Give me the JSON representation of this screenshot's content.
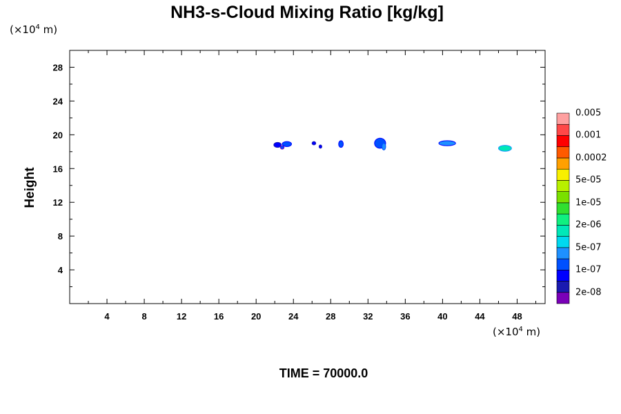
{
  "header": {
    "title": "NH3-s-Cloud Mixing Ratio [kg/kg]",
    "y_unit_prefix": "(×10",
    "y_unit_exp": "4",
    "y_unit_suffix": " m)",
    "x_unit_prefix": "(×10",
    "x_unit_exp": "4",
    "x_unit_suffix": " m)",
    "ylabel": "Height"
  },
  "footer": {
    "time_label": "TIME = 70000.0"
  },
  "chart_data": {
    "type": "heatmap",
    "title": "NH3-s-Cloud Mixing Ratio [kg/kg]",
    "xlabel": "",
    "ylabel": "Height",
    "x_unit": "×10^4 m",
    "y_unit": "×10^4 m",
    "xlim": [
      0,
      51
    ],
    "ylim": [
      0,
      30
    ],
    "x_ticks": [
      4,
      8,
      12,
      16,
      20,
      24,
      28,
      32,
      36,
      40,
      44,
      48
    ],
    "y_ticks": [
      4,
      8,
      12,
      16,
      20,
      24,
      28
    ],
    "grid": false,
    "colorbar": {
      "colors": [
        "#7a00b8",
        "#1a1ab0",
        "#0000ff",
        "#0050ff",
        "#1e90ff",
        "#00d8f0",
        "#00e8b8",
        "#10f080",
        "#30e030",
        "#7ae000",
        "#b8f000",
        "#f8f000",
        "#ffa000",
        "#ff5a00",
        "#ff0000",
        "#ff4848",
        "#ffa0a0"
      ],
      "labels": [
        "2e-08",
        "1e-07",
        "5e-07",
        "2e-06",
        "1e-05",
        "5e-05",
        "0.0002",
        "0.001",
        "0.005"
      ]
    },
    "features": [
      {
        "x": 22.3,
        "y": 18.8,
        "rx": 0.4,
        "ry": 0.3,
        "color": "#0000ff",
        "edge": "#1a1ab0"
      },
      {
        "x": 22.8,
        "y": 18.5,
        "rx": 0.2,
        "ry": 0.2,
        "color": "#0050ff",
        "edge": "#7a00b8"
      },
      {
        "x": 23.3,
        "y": 18.9,
        "rx": 0.5,
        "ry": 0.3,
        "color": "#0050ff",
        "edge": "#0000ff"
      },
      {
        "x": 26.2,
        "y": 19.0,
        "rx": 0.2,
        "ry": 0.2,
        "color": "#0000ff",
        "edge": "#1a1ab0"
      },
      {
        "x": 26.9,
        "y": 18.6,
        "rx": 0.15,
        "ry": 0.2,
        "color": "#0000ff",
        "edge": "#1a1ab0"
      },
      {
        "x": 29.1,
        "y": 18.9,
        "rx": 0.25,
        "ry": 0.4,
        "color": "#0050ff",
        "edge": "#0000ff"
      },
      {
        "x": 33.3,
        "y": 19.0,
        "rx": 0.6,
        "ry": 0.6,
        "color": "#0050ff",
        "edge": "#0000ff"
      },
      {
        "x": 33.7,
        "y": 18.6,
        "rx": 0.2,
        "ry": 0.4,
        "color": "#1e90ff",
        "edge": "#0050ff"
      },
      {
        "x": 40.5,
        "y": 19.0,
        "rx": 0.9,
        "ry": 0.3,
        "color": "#1e90ff",
        "edge": "#0000ff"
      },
      {
        "x": 46.7,
        "y": 18.4,
        "rx": 0.7,
        "ry": 0.35,
        "color": "#00e8b8",
        "edge": "#1e90ff"
      }
    ]
  }
}
